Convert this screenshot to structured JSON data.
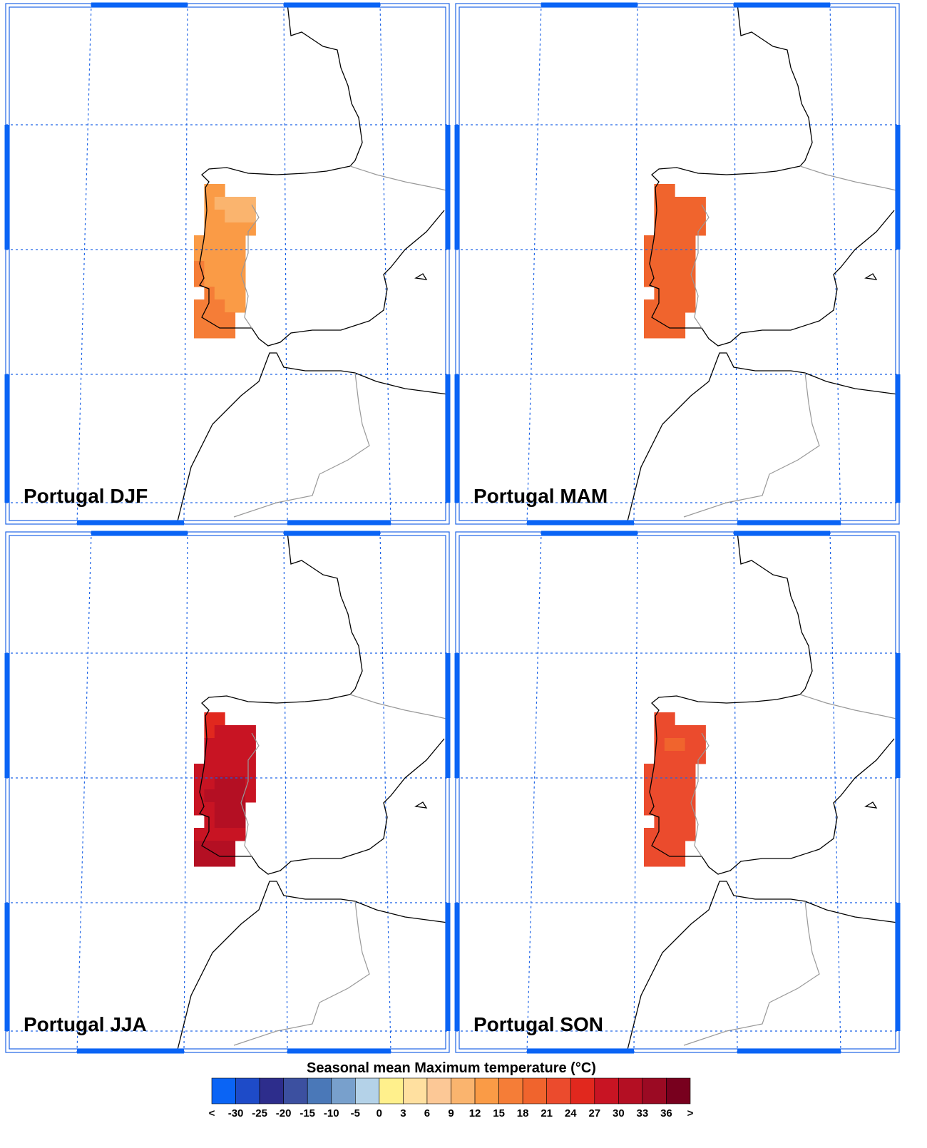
{
  "panels": [
    {
      "label": "Portugal DJF",
      "cells": [
        [
          null,
          14,
          14,
          null,
          null,
          null
        ],
        [
          null,
          14,
          11,
          11,
          11,
          11
        ],
        [
          null,
          14,
          12,
          11,
          11,
          11
        ],
        [
          null,
          14,
          13,
          12,
          12,
          12
        ],
        [
          14,
          14,
          14,
          13,
          13,
          null
        ],
        [
          14,
          14,
          14,
          14,
          13,
          null
        ],
        [
          15,
          14,
          14,
          14,
          14,
          null
        ],
        [
          15,
          14,
          14,
          14,
          14,
          null
        ],
        [
          null,
          15,
          14,
          14,
          14,
          null
        ],
        [
          15,
          15,
          15,
          14,
          14,
          null
        ],
        [
          16,
          16,
          16,
          16,
          null,
          null
        ],
        [
          16,
          16,
          16,
          16,
          null,
          null
        ]
      ]
    },
    {
      "label": "Portugal MAM",
      "cells": [
        [
          null,
          20,
          20,
          null,
          null,
          null
        ],
        [
          null,
          20,
          19,
          19,
          19,
          19
        ],
        [
          null,
          20,
          18,
          18,
          19,
          19
        ],
        [
          null,
          20,
          19,
          19,
          19,
          19
        ],
        [
          20,
          20,
          20,
          20,
          20,
          null
        ],
        [
          20,
          20,
          20,
          20,
          20,
          null
        ],
        [
          20,
          20,
          20,
          20,
          20,
          null
        ],
        [
          20,
          20,
          20,
          20,
          20,
          null
        ],
        [
          null,
          20,
          20,
          20,
          20,
          null
        ],
        [
          20,
          20,
          20,
          20,
          20,
          null
        ],
        [
          20,
          20,
          20,
          20,
          null,
          null
        ],
        [
          20,
          20,
          20,
          20,
          null,
          null
        ]
      ]
    },
    {
      "label": "Portugal JJA",
      "cells": [
        [
          null,
          26,
          26,
          null,
          null,
          null
        ],
        [
          null,
          26,
          28,
          28,
          28,
          28
        ],
        [
          null,
          27,
          28,
          28,
          28,
          28
        ],
        [
          null,
          28,
          28,
          28,
          29,
          29
        ],
        [
          28,
          28,
          29,
          29,
          29,
          29
        ],
        [
          29,
          29,
          31,
          31,
          31,
          29
        ],
        [
          28,
          30,
          31,
          31,
          31,
          29
        ],
        [
          28,
          28,
          31,
          31,
          31,
          null
        ],
        [
          null,
          28,
          31,
          31,
          31,
          null
        ],
        [
          29,
          28,
          28,
          29,
          29,
          null
        ],
        [
          31,
          31,
          31,
          31,
          null,
          null
        ],
        [
          31,
          31,
          31,
          31,
          null,
          null
        ]
      ]
    },
    {
      "label": "Portugal SON",
      "cells": [
        [
          null,
          22,
          22,
          null,
          null,
          null
        ],
        [
          null,
          22,
          21,
          21,
          21,
          21
        ],
        [
          null,
          22,
          20,
          20,
          21,
          21
        ],
        [
          null,
          22,
          21,
          21,
          21,
          21
        ],
        [
          22,
          22,
          22,
          22,
          22,
          null
        ],
        [
          22,
          22,
          22,
          22,
          22,
          null
        ],
        [
          22,
          22,
          22,
          22,
          22,
          null
        ],
        [
          22,
          22,
          22,
          22,
          22,
          null
        ],
        [
          null,
          22,
          22,
          22,
          22,
          null
        ],
        [
          22,
          22,
          22,
          22,
          22,
          null
        ],
        [
          22,
          22,
          22,
          22,
          null,
          null
        ],
        [
          22,
          22,
          22,
          22,
          null,
          null
        ]
      ]
    }
  ],
  "colorbar": {
    "title": "Seasonal mean Maximum temperature (°C)",
    "boundaries": [
      "<",
      -30,
      -25,
      -20,
      -15,
      -10,
      -5,
      0,
      3,
      6,
      9,
      12,
      15,
      18,
      21,
      24,
      27,
      30,
      33,
      36,
      ">"
    ],
    "colors": [
      "#0a64f5",
      "#1e4bc8",
      "#2d2d8c",
      "#3c50a0",
      "#4a78b8",
      "#78a0cc",
      "#b4d2e8",
      "#fff08c",
      "#ffe0a0",
      "#fcc896",
      "#fab46e",
      "#fa9b46",
      "#f57d37",
      "#f0642d",
      "#eb4b2d",
      "#e1281e",
      "#c81423",
      "#b40f23",
      "#9b0a23",
      "#78001e"
    ]
  }
}
